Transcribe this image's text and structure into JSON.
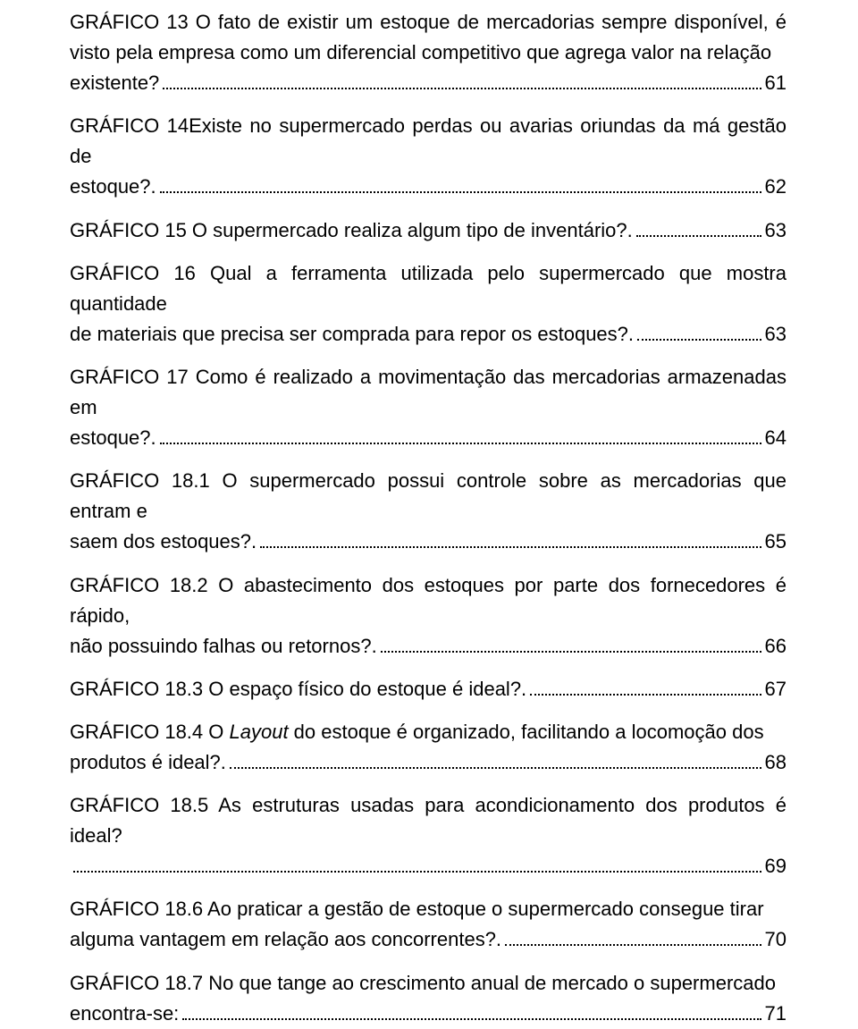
{
  "typography": {
    "font_family": "Arial",
    "font_size_pt": 16,
    "color": "#000000",
    "line_height": 1.55
  },
  "background_color": "#ffffff",
  "entries": [
    {
      "lead": "GRÁFICO 13 O fato de existir um estoque de mercadorias sempre disponível, é visto pela empresa como um diferencial competitivo que agrega valor na relação",
      "tail": "existente?",
      "page": "61"
    },
    {
      "lead": "GRÁFICO 14Existe no supermercado perdas ou avarias oriundas da má gestão de",
      "tail": "estoque?.",
      "page": "62"
    },
    {
      "lead": "",
      "tail": "GRÁFICO 15 O supermercado realiza algum tipo de inventário?.",
      "page": "63"
    },
    {
      "lead": "GRÁFICO 16 Qual a ferramenta utilizada pelo supermercado que mostra quantidade",
      "tail": "de materiais que precisa ser comprada para repor os estoques?.",
      "page": "63"
    },
    {
      "lead": "GRÁFICO 17 Como é realizado a movimentação das mercadorias armazenadas em",
      "tail": "estoque?.",
      "page": "64"
    },
    {
      "lead": "GRÁFICO 18.1 O supermercado possui controle sobre as mercadorias que entram e",
      "tail": "saem dos estoques?.",
      "page": "65"
    },
    {
      "lead": "GRÁFICO 18.2 O abastecimento dos estoques por parte dos fornecedores é rápido,",
      "tail": "não possuindo falhas ou retornos?.",
      "page": "66"
    },
    {
      "lead": "",
      "tail": "GRÁFICO 18.3 O espaço físico do estoque é ideal?.",
      "page": "67"
    },
    {
      "lead_html": "GRÁFICO 18.4 O <span class=\"italic\">Layout</span> do estoque é organizado, facilitando a locomoção dos",
      "tail": "produtos é ideal?.",
      "page": "68"
    },
    {
      "lead": "GRÁFICO 18.5 As estruturas usadas para acondicionamento dos produtos é ideal?",
      "tail": "",
      "page": "69"
    },
    {
      "lead": "GRÁFICO 18.6 Ao praticar a gestão de estoque o supermercado consegue tirar",
      "tail": "alguma vantagem em relação aos concorrentes?.",
      "page": "70"
    },
    {
      "lead": "GRÁFICO 18.7 No que tange ao crescimento anual de mercado o supermercado",
      "tail": "encontra-se:",
      "page": "71"
    }
  ]
}
